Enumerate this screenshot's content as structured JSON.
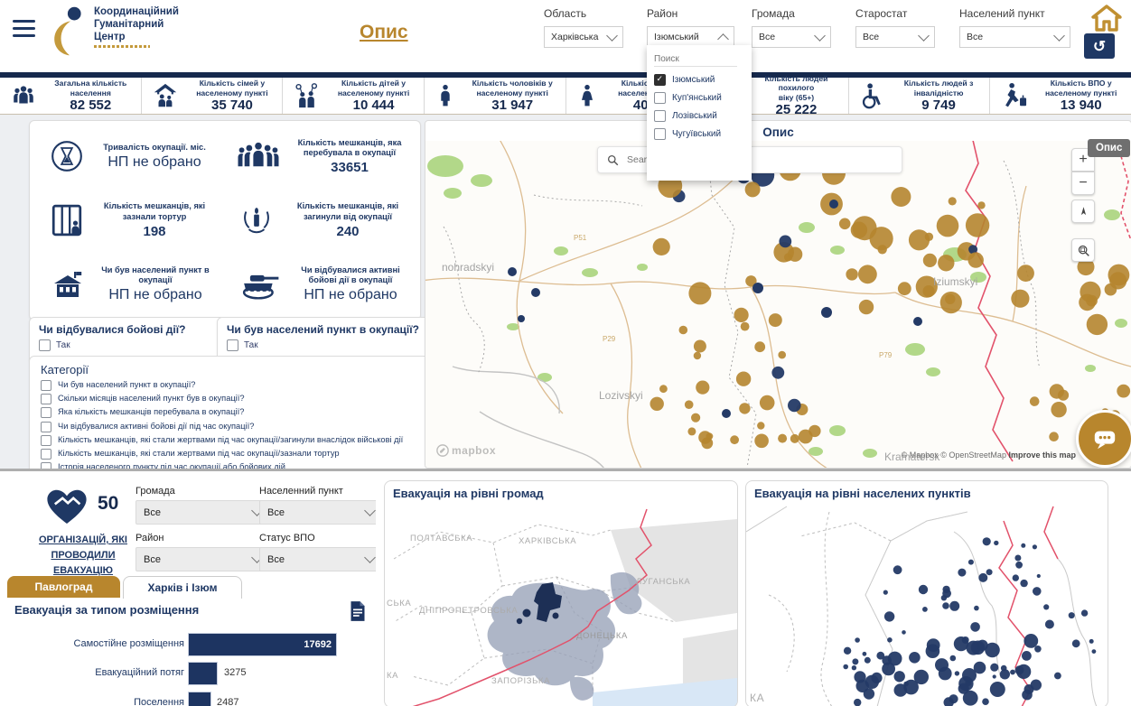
{
  "header": {
    "logo": {
      "title": "Координаційний\nГуманітарний\nЦентр"
    },
    "opys_link": "Опис",
    "filters": [
      {
        "label": "Область",
        "value": "Харківська"
      },
      {
        "label": "Район",
        "value": "Ізюмський"
      },
      {
        "label": "Громада",
        "value": "Все"
      },
      {
        "label": "Старостат",
        "value": "Все"
      },
      {
        "label": "Населений пункт",
        "value": "Все"
      }
    ],
    "district_dropdown": {
      "search_placeholder": "Поиск",
      "options": [
        {
          "label": "Ізюмський",
          "checked": true
        },
        {
          "label": "Куп'янський",
          "checked": false
        },
        {
          "label": "Лозівський",
          "checked": false
        },
        {
          "label": "Чугуївський",
          "checked": false
        }
      ]
    }
  },
  "stats_bar": {
    "items": [
      {
        "icon": "population-group-icon",
        "label": "Загальна кількість\nнаселення",
        "value": "82 552"
      },
      {
        "icon": "family-house-icon",
        "label": "Кількість сімей у\nнаселеному пункті",
        "value": "35 740"
      },
      {
        "icon": "children-icon",
        "label": "Кількість дітей у\nнаселеному пункті",
        "value": "10 444"
      },
      {
        "icon": "man-icon",
        "label": "Кількість чоловіків у\nнаселеному пункті",
        "value": "31 947"
      },
      {
        "icon": "woman-icon",
        "label": "Кількість жінок у\nнаселеному пункті",
        "value": "40 161"
      },
      {
        "icon": "elderly-icon",
        "label": "Кількість людей похилого\nвіку (65+)",
        "value": "25 222"
      },
      {
        "icon": "wheelchair-icon",
        "label": "Кількість людей з\nінвалідністю",
        "value": "9 749"
      },
      {
        "icon": "idp-icon",
        "label": "Кількість ВПО у\nнаселеному пункті",
        "value": "13 940"
      }
    ]
  },
  "occupation_panel": {
    "items": [
      {
        "icon": "hourglass-icon",
        "label": "Тривалість окупації. міс.",
        "value": "НП не обрано"
      },
      {
        "icon": "crowd-icon",
        "label": "Кількість мешканців, яка\nперебувала в окупації",
        "value": "33651"
      },
      {
        "icon": "prison-icon",
        "label": "Кількість мешканців, які\nзазнали тортур",
        "value": "198"
      },
      {
        "icon": "memorial-candle-icon",
        "label": "Кількість мешканців, які\nзагинули від окупації",
        "value": "240"
      },
      {
        "icon": "building-icon",
        "label": "Чи був населений пункт в\nокупації",
        "value": "НП не обрано"
      },
      {
        "icon": "tank-icon",
        "label": "Чи відбувалися активні\nбойові дії в окупації",
        "value": "НП не обрано"
      }
    ]
  },
  "combat_filter": {
    "question": "Чи відбувалися бойові дії?",
    "option": "Так"
  },
  "occupied_filter": {
    "question": "Чи був населений пункт в окупації?",
    "option": "Так"
  },
  "categories": {
    "title": "Категорії",
    "items": [
      "Чи був населений пункт в окупації?",
      "Скільки місяців населений пункт був в окупації?",
      "Яка кількість мешканців перебувала в окупації?",
      "Чи відбувалися активні бойові дії під час окупації?",
      "Кількість мешканців, які стали жертвами під час окупації/загинули внаслідок військові дії",
      "Кількість мешканців, які стали жертвами під час окупації/зазнали тортур",
      "Історія населеного пункту під час окупації або бойових дій",
      "Опишіть своє бачення розвитку населеного пункту"
    ]
  },
  "map": {
    "title": "Опис",
    "tooltip": "Опис",
    "search_placeholder": "Search",
    "area_labels": {
      "northwest": "nohradskyi",
      "southwest": "Lozivskyi",
      "east": "Iziumskyi",
      "southeast": "Kramatorsk"
    },
    "road_labels": [
      "P51",
      "P29",
      "P79"
    ],
    "attribution": "© Mapbox © OpenStreetMap",
    "improve_link": "Improve this map",
    "brand": "mapbox"
  },
  "evacuation": {
    "org_count": "50",
    "org_label": "ОРГАНІЗАЦІЙ, ЯКІ\nПРОВОДИЛИ\nЕВАКУАЦІЮ",
    "filters": [
      {
        "label": "Громада",
        "value": "Все"
      },
      {
        "label": "Населенний пункт",
        "value": "Все"
      },
      {
        "label": "Район",
        "value": "Все"
      },
      {
        "label": "Статус ВПО",
        "value": "Все"
      }
    ],
    "tabs": [
      {
        "label": "Павлоград",
        "active": true
      },
      {
        "label": "Харків і Ізюм",
        "active": false
      }
    ],
    "chart_title": "Евакуація за типом розміщення"
  },
  "chart_data": {
    "type": "bar",
    "orientation": "horizontal",
    "title": "Евакуація за типом розміщення",
    "categories": [
      "Самостійне розміщення",
      "Евакуаційний потяг",
      "Поселення"
    ],
    "values": [
      17692,
      3275,
      2487
    ]
  },
  "gromada_map": {
    "title": "Евакуація на рівні громад",
    "region_labels": [
      "ПОЛТАВСЬКА",
      "ХАРКІВСЬКА",
      "ЛУГАНСЬКА",
      "ДНІПРОПЕТРОВСЬКА",
      "ДОНЕЦЬКА",
      "ЗАПОРІЗЬКА",
      "СЬКА",
      "КА"
    ]
  },
  "settlement_map": {
    "title": "Евакуація на рівні населених пунктів",
    "partial_label": "КА"
  },
  "colors": {
    "navy": "#1f3864",
    "gold": "#b8862d",
    "map_dot_gold": "#b5852f",
    "map_dot_navy": "#243a66",
    "choropleth_light": "#98a2b8",
    "choropleth_dark": "#1d2f55",
    "front_line_red": "#e2526b"
  }
}
